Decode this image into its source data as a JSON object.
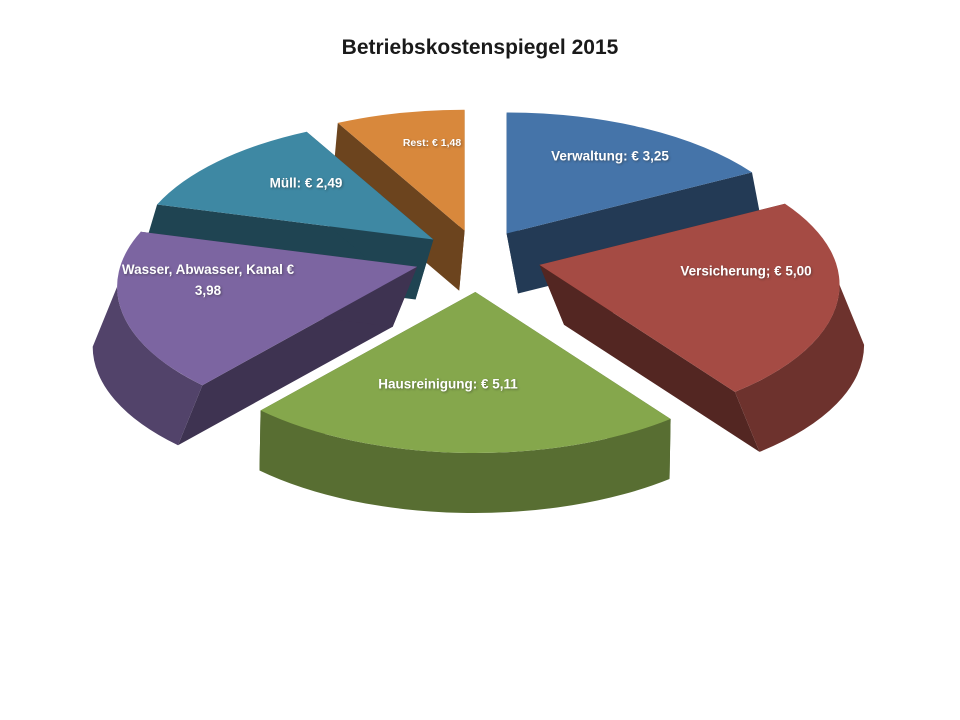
{
  "chart_data": {
    "type": "pie",
    "style": "3d-exploded-pie",
    "title": "Betriebskostenspiegel 2015",
    "legend": "none",
    "labels_on_slices": true,
    "start_angle_deg": 0,
    "direction": "clockwise",
    "background_color": "#ffffff",
    "title_color": "#1a1a1a",
    "label_text_color": "#ffffff",
    "slices": [
      {
        "name": "Verwaltung",
        "label": "Verwaltung: € 3,25",
        "value": 3.25,
        "color": "#4574A9"
      },
      {
        "name": "Versicherung",
        "label": "Versicherung; € 5,00",
        "value": 5.0,
        "color": "#A54B44"
      },
      {
        "name": "Hausreinigung",
        "label": "Hausreinigung: € 5,11",
        "value": 5.11,
        "color": "#85A74C"
      },
      {
        "name": "Wasser, Abwasser, Kanal",
        "label": "Wasser, Abwasser, Kanal € 3,98",
        "value": 3.98,
        "color": "#7C65A1"
      },
      {
        "name": "Müll",
        "label": "Müll: € 2,49",
        "value": 2.49,
        "color": "#3E88A3"
      },
      {
        "name": "Rest",
        "label": "Rest: € 1,48",
        "value": 1.48,
        "color": "#D8883C"
      }
    ]
  }
}
